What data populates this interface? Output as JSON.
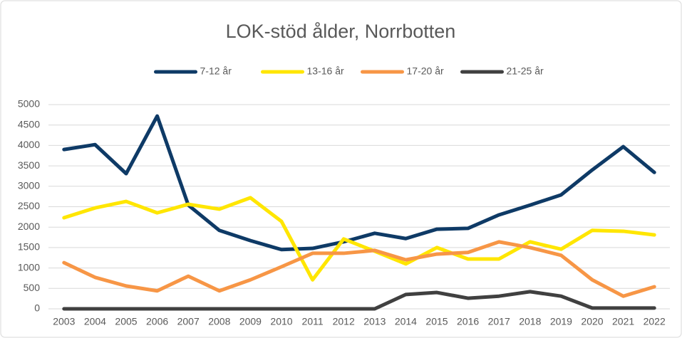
{
  "chart_data": {
    "type": "line",
    "title": "LOK-stöd ålder, Norrbotten",
    "categories": [
      "2003",
      "2004",
      "2005",
      "2006",
      "2007",
      "2008",
      "2009",
      "2010",
      "2011",
      "2012",
      "2013",
      "2014",
      "2015",
      "2016",
      "2017",
      "2018",
      "2019",
      "2020",
      "2021",
      "2022"
    ],
    "series": [
      {
        "name": "7-12 år",
        "color": "#0e3a66",
        "values": [
          3900,
          4020,
          3310,
          4720,
          2540,
          1920,
          1670,
          1450,
          1480,
          1640,
          1850,
          1720,
          1950,
          1970,
          2300,
          2540,
          2790,
          3400,
          3970,
          3340
        ]
      },
      {
        "name": "13-16 år",
        "color": "#ffe600",
        "values": [
          2230,
          2470,
          2630,
          2350,
          2560,
          2440,
          2720,
          2140,
          710,
          1710,
          1410,
          1100,
          1500,
          1220,
          1220,
          1640,
          1460,
          1920,
          1900,
          1810
        ]
      },
      {
        "name": "17-20 år",
        "color": "#f79646",
        "values": [
          1130,
          770,
          560,
          440,
          800,
          440,
          710,
          1030,
          1360,
          1360,
          1430,
          1200,
          1340,
          1380,
          1640,
          1500,
          1310,
          710,
          310,
          540
        ]
      },
      {
        "name": "21-25 år",
        "color": "#404040",
        "values": [
          0,
          0,
          0,
          0,
          0,
          0,
          0,
          0,
          0,
          0,
          0,
          350,
          400,
          260,
          310,
          420,
          310,
          20,
          20,
          20
        ]
      }
    ],
    "ylim": [
      0,
      5000
    ],
    "yticks": [
      0,
      500,
      1000,
      1500,
      2000,
      2500,
      3000,
      3500,
      4000,
      4500,
      5000
    ],
    "grid": true,
    "legend": "top"
  }
}
